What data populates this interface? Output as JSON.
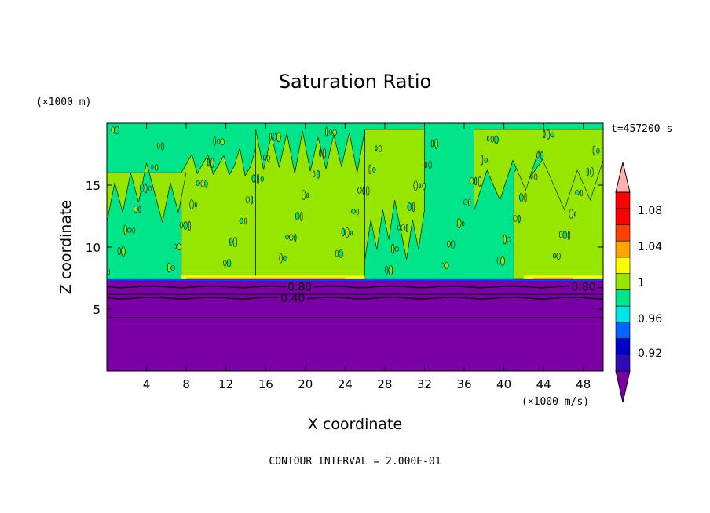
{
  "chart_data": {
    "type": "heatmap",
    "title": "Saturation Ratio",
    "xlabel": "X coordinate",
    "ylabel": "Z coordinate",
    "x_unit": "(×1000 m/s)",
    "y_unit": "(×1000 m)",
    "time_label": "t=457200 s",
    "footer": "CONTOUR INTERVAL = 2.000E-01",
    "xlim": [
      0,
      50
    ],
    "ylim": [
      0,
      20
    ],
    "x_ticks": [
      4,
      8,
      12,
      16,
      20,
      24,
      28,
      32,
      36,
      40,
      44,
      48
    ],
    "y_ticks": [
      5,
      10,
      15
    ],
    "contour_lines": [
      {
        "label": "0.80",
        "z": 6.8
      },
      {
        "label": "0.40",
        "z": 5.9
      }
    ],
    "bands": [
      {
        "label": "0.80",
        "z_bottom": 0.0,
        "z_top": 7.3,
        "level": "below 0.90",
        "color": "#7a00a6"
      },
      {
        "label": "",
        "z_bottom": 7.3,
        "z_top": 7.5,
        "level": "0.98-1.00",
        "color": "#00e58a"
      },
      {
        "label": "",
        "z_bottom": 7.5,
        "z_top": 20.0,
        "level": "0.98-1.00 / 1.00-1.02",
        "color": "#00e58a"
      }
    ],
    "supersaturated_columns_x": [
      [
        7.5,
        15.0
      ],
      [
        15.0,
        26.0
      ],
      [
        41.0,
        50.0
      ]
    ],
    "colorbar": {
      "labels": [
        "1.08",
        "1.04",
        "1",
        "0.96",
        "0.92"
      ],
      "colors": [
        "#7a00a6",
        "#2d0bb8",
        "#0000c8",
        "#0064ff",
        "#00e5e5",
        "#00e58a",
        "#96e600",
        "#ffff00",
        "#ffa500",
        "#ff4000",
        "#ff0000",
        "#ffb0b0"
      ]
    },
    "grid": false,
    "legend_placement": "right"
  }
}
